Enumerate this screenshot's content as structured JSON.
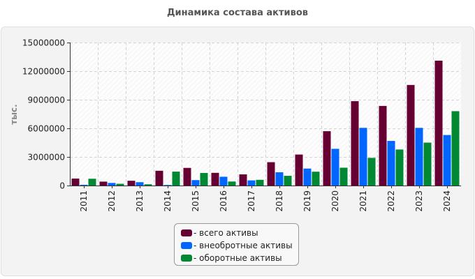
{
  "chart_data": {
    "type": "bar",
    "title": "Динамика состава активов",
    "xlabel": "",
    "ylabel": "тыс.",
    "ylim": [
      0,
      15000000
    ],
    "yticks": [
      0,
      3000000,
      6000000,
      9000000,
      12000000,
      15000000
    ],
    "ytick_labels": [
      "0",
      "3000000",
      "6000000",
      "9000000",
      "12000000",
      "15000000"
    ],
    "grid": true,
    "legend_position": "bottom-center",
    "categories": [
      "2011",
      "2012",
      "2013",
      "2014",
      "2015",
      "2016",
      "2017",
      "2018",
      "2019",
      "2020",
      "2021",
      "2022",
      "2023",
      "2024"
    ],
    "series": [
      {
        "name": "- всего активы",
        "color": "#660033",
        "values": [
          730000,
          410000,
          500000,
          1550000,
          1850000,
          1330000,
          1170000,
          2450000,
          3250000,
          5700000,
          8850000,
          8350000,
          10550000,
          13100000
        ]
      },
      {
        "name": "- внеобротные активы",
        "color": "#0066ff",
        "values": [
          80000,
          270000,
          350000,
          60000,
          570000,
          920000,
          540000,
          1390000,
          1780000,
          3850000,
          6050000,
          4680000,
          6050000,
          5300000
        ]
      },
      {
        "name": "- оборотные активы",
        "color": "#008833",
        "values": [
          710000,
          180000,
          130000,
          1460000,
          1320000,
          420000,
          600000,
          1020000,
          1450000,
          1870000,
          2900000,
          3780000,
          4500000,
          7800000
        ]
      }
    ]
  }
}
